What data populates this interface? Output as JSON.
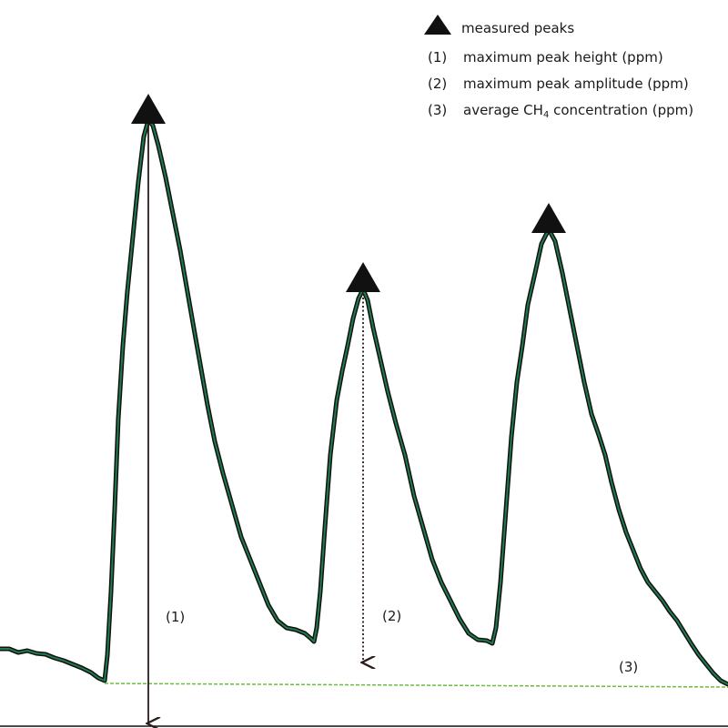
{
  "legend": {
    "marker_label": "measured peaks",
    "items": [
      {
        "num": "(1)",
        "pre": "maximum peak height (ppm)",
        "sub": "",
        "post": ""
      },
      {
        "num": "(2)",
        "pre": "maximum peak amplitude (ppm)",
        "sub": "",
        "post": ""
      },
      {
        "num": "(3)",
        "pre": "average CH",
        "sub": "4",
        "post": " concentration (ppm)"
      }
    ]
  },
  "annotations": {
    "a1": "(1)",
    "a2": "(2)",
    "a3": "(3)"
  },
  "colors": {
    "signal_outer": "#111111",
    "signal_inner": "#1f7a4d",
    "baseline": "#6abf3a",
    "marker": "#111111",
    "arrow": "#2b1b1b"
  }
}
